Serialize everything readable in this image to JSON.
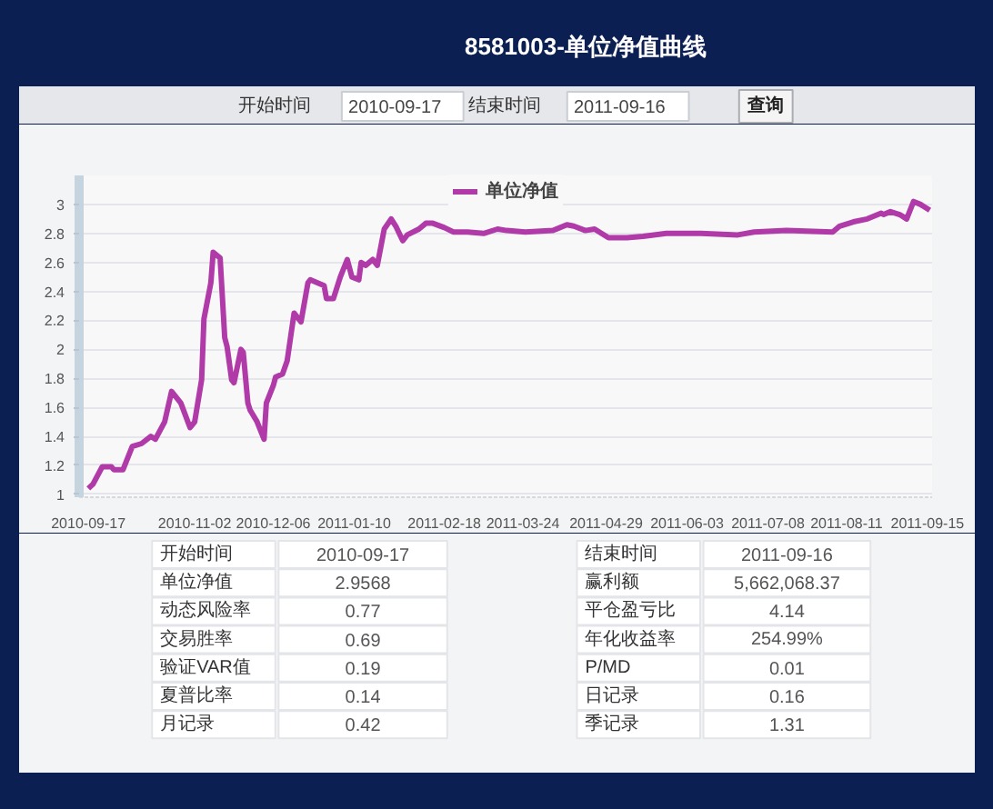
{
  "chart_data": {
    "type": "line",
    "title": "8581003-单位净值曲线",
    "x": [
      "2010-09-17",
      "2010-09-19",
      "2010-09-23",
      "2010-09-27",
      "2010-09-28",
      "2010-10-02",
      "2010-10-04",
      "2010-10-06",
      "2010-10-10",
      "2010-10-14",
      "2010-10-16",
      "2010-10-20",
      "2010-10-23",
      "2010-10-27",
      "2010-10-31",
      "2010-11-02",
      "2010-11-05",
      "2010-11-06",
      "2010-11-09",
      "2010-11-10",
      "2010-11-13",
      "2010-11-15",
      "2010-11-16",
      "2010-11-18",
      "2010-11-19",
      "2010-11-22",
      "2010-11-23",
      "2010-11-25",
      "2010-11-26",
      "2010-11-29",
      "2010-12-02",
      "2010-12-03",
      "2010-12-06",
      "2010-12-07",
      "2010-12-10",
      "2010-12-12",
      "2010-12-15",
      "2010-12-18",
      "2010-12-21",
      "2010-12-22",
      "2010-12-25",
      "2010-12-28",
      "2010-12-29",
      "2011-01-01",
      "2011-01-04",
      "2011-01-07",
      "2011-01-09",
      "2011-01-12",
      "2011-01-13",
      "2011-01-15",
      "2011-01-18",
      "2011-01-20",
      "2011-01-23",
      "2011-01-26",
      "2011-01-28",
      "2011-01-31",
      "2011-02-02",
      "2011-02-07",
      "2011-02-10",
      "2011-02-13",
      "2011-02-18",
      "2011-02-22",
      "2011-02-28",
      "2011-03-07",
      "2011-03-13",
      "2011-03-17",
      "2011-03-25",
      "2011-04-06",
      "2011-04-12",
      "2011-04-15",
      "2011-04-20",
      "2011-04-24",
      "2011-04-30",
      "2011-05-08",
      "2011-05-15",
      "2011-05-25",
      "2011-06-09",
      "2011-06-25",
      "2011-07-02",
      "2011-07-16",
      "2011-08-05",
      "2011-08-08",
      "2011-08-14",
      "2011-08-20",
      "2011-08-26",
      "2011-08-27",
      "2011-08-30",
      "2011-09-03",
      "2011-09-06",
      "2011-09-09",
      "2011-09-12",
      "2011-09-13",
      "2011-09-16"
    ],
    "series": [
      {
        "name": "单位净值",
        "color": "#b03aa8",
        "values": [
          1.04,
          1.07,
          1.19,
          1.19,
          1.17,
          1.17,
          1.25,
          1.33,
          1.35,
          1.4,
          1.38,
          1.5,
          1.71,
          1.63,
          1.46,
          1.5,
          1.79,
          2.21,
          2.46,
          2.67,
          2.63,
          2.08,
          2.02,
          1.79,
          1.77,
          2,
          1.98,
          1.63,
          1.58,
          1.5,
          1.38,
          1.63,
          1.75,
          1.81,
          1.83,
          1.92,
          2.25,
          2.19,
          2.46,
          2.48,
          2.46,
          2.44,
          2.35,
          2.35,
          2.5,
          2.62,
          2.5,
          2.48,
          2.6,
          2.58,
          2.62,
          2.58,
          2.83,
          2.9,
          2.85,
          2.75,
          2.79,
          2.83,
          2.87,
          2.87,
          2.84,
          2.81,
          2.81,
          2.8,
          2.83,
          2.82,
          2.81,
          2.82,
          2.86,
          2.85,
          2.82,
          2.83,
          2.77,
          2.77,
          2.78,
          2.8,
          2.8,
          2.79,
          2.81,
          2.82,
          2.81,
          2.85,
          2.88,
          2.9,
          2.94,
          2.93,
          2.95,
          2.93,
          2.9,
          3.02,
          3,
          2.99,
          2.96
        ]
      }
    ],
    "xlim": [
      "2010-09-13",
      "2011-09-17"
    ],
    "ylim": [
      0.98,
      3.2
    ],
    "xticks": [
      "2010-09-17",
      "2010-11-02",
      "2010-12-06",
      "2011-01-10",
      "2011-02-18",
      "2011-03-24",
      "2011-04-29",
      "2011-06-03",
      "2011-07-08",
      "2011-08-11",
      "2011-09-15"
    ],
    "yticks": [
      1,
      1.2,
      1.4,
      1.6,
      1.8,
      2,
      2.2,
      2.4,
      2.6,
      2.8,
      3
    ],
    "grid": "y",
    "legend": "top",
    "annotations": [
      "开始时间",
      "2010-09-17",
      "结束时间",
      "2011-09-16",
      "查询",
      "开始时间",
      "2010-09-17",
      "单位净值",
      "2.9568",
      "动态风险率",
      "0.77",
      "交易胜率",
      "0.69",
      "验证VAR值",
      "0.19",
      "夏普比率",
      "0.14",
      "月记录",
      "0.42",
      "结束时间",
      "2011-09-16",
      "赢利额",
      "5,662,068.37",
      "平仓盈亏比",
      "4.14",
      "年化收益率",
      "254.99%",
      "P/MD",
      "0.01",
      "日记录",
      "0.16",
      "季记录",
      "1.31"
    ]
  }
}
